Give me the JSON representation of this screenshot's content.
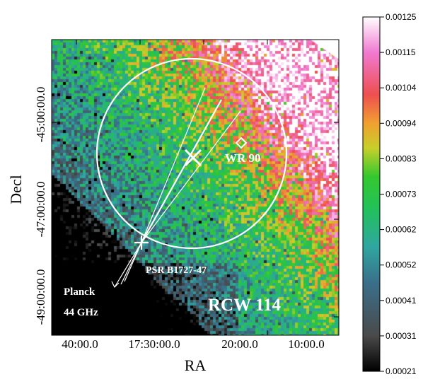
{
  "axes": {
    "xlabel": "RA",
    "ylabel": "Decl",
    "x_ticks": [
      "40:00.0",
      "17:30:00.0",
      "20:00.0",
      "10:00.0"
    ],
    "y_ticks": [
      "-45:00:00.0",
      "-47:00:00.0",
      "-49:00:00.0"
    ]
  },
  "annotations": {
    "star": "WR 90",
    "pulsar": "PSR B1727-47",
    "instrument_line1": "Planck",
    "instrument_line2": "44 GHz",
    "region": "RCW 114"
  },
  "colorbar": {
    "ticks": [
      "0.00125",
      "0.00115",
      "0.00104",
      "0.00094",
      "0.00083",
      "0.00073",
      "0.00062",
      "0.00052",
      "0.00041",
      "0.00031",
      "0.00021"
    ],
    "colors": [
      "#000000",
      "#4a4a4a",
      "#3a6f8a",
      "#2fa6a0",
      "#22c15a",
      "#35c82e",
      "#c8cf2a",
      "#f0a030",
      "#ee4f4f",
      "#f07ad0",
      "#ffffff"
    ]
  }
}
